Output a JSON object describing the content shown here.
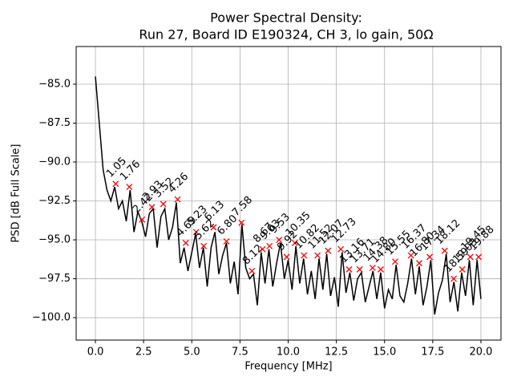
{
  "chart_data": {
    "type": "line",
    "title": [
      "Power Spectral Density:",
      "Run 27, Board ID E190324, CH 3, lo gain, 50Ω"
    ],
    "x_label": "Frequency [MHz]",
    "y_label": "PSD [dB Full Scale]",
    "x": [
      0.0,
      0.2,
      0.4,
      0.6,
      0.8,
      1.0,
      1.2,
      1.4,
      1.6,
      1.8,
      2.0,
      2.2,
      2.4,
      2.6,
      2.8,
      3.0,
      3.2,
      3.4,
      3.6,
      3.8,
      4.0,
      4.2,
      4.4,
      4.6,
      4.8,
      5.0,
      5.2,
      5.4,
      5.6,
      5.8,
      6.0,
      6.2,
      6.4,
      6.6,
      6.8,
      7.0,
      7.2,
      7.4,
      7.6,
      7.8,
      8.0,
      8.2,
      8.4,
      8.6,
      8.8,
      9.0,
      9.2,
      9.4,
      9.6,
      9.8,
      10.0,
      10.2,
      10.4,
      10.6,
      10.8,
      11.0,
      11.2,
      11.4,
      11.6,
      11.8,
      12.0,
      12.2,
      12.4,
      12.6,
      12.8,
      13.0,
      13.2,
      13.4,
      13.6,
      13.8,
      14.0,
      14.2,
      14.4,
      14.6,
      14.8,
      15.0,
      15.2,
      15.4,
      15.6,
      15.8,
      16.0,
      16.2,
      16.4,
      16.6,
      16.8,
      17.0,
      17.2,
      17.4,
      17.6,
      17.8,
      18.0,
      18.2,
      18.4,
      18.6,
      18.8,
      19.0,
      19.2,
      19.4,
      19.6,
      19.8,
      20.0
    ],
    "series": [
      {
        "color": "#000000",
        "values": [
          -84.5,
          -87.5,
          -90.5,
          -91.8,
          -92.5,
          -91.6,
          -93.0,
          -92.5,
          -93.8,
          -91.8,
          -94.5,
          -93.2,
          -93.8,
          -94.8,
          -93.3,
          -93.0,
          -95.5,
          -93.5,
          -93.0,
          -95.0,
          -94.2,
          -92.6,
          -96.5,
          -95.5,
          -97.0,
          -95.8,
          -94.6,
          -96.8,
          -95.5,
          -98.0,
          -95.5,
          -94.5,
          -97.2,
          -96.0,
          -95.2,
          -97.8,
          -96.4,
          -98.5,
          -94.0,
          -96.8,
          -97.5,
          -97.2,
          -99.2,
          -95.8,
          -97.8,
          -95.6,
          -98.0,
          -96.5,
          -95.2,
          -97.5,
          -96.3,
          -98.2,
          -95.4,
          -97.8,
          -96.2,
          -98.5,
          -97.0,
          -98.8,
          -96.2,
          -98.2,
          -95.9,
          -98.6,
          -97.4,
          -99.3,
          -95.8,
          -98.4,
          -97.1,
          -98.9,
          -97.5,
          -97.1,
          -99.0,
          -98.0,
          -97.0,
          -98.8,
          -97.1,
          -99.4,
          -98.2,
          -98.8,
          -96.6,
          -98.6,
          -99.0,
          -97.8,
          -96.2,
          -98.5,
          -96.7,
          -99.2,
          -98.0,
          -96.3,
          -99.8,
          -98.4,
          -97.6,
          -95.9,
          -99.0,
          -97.7,
          -99.6,
          -97.1,
          -98.6,
          -96.3,
          -99.2,
          -96.3,
          -98.8
        ]
      }
    ],
    "peaks": {
      "color": "#ff0000",
      "x": [
        1.05,
        1.76,
        2.42,
        2.93,
        3.52,
        4.26,
        4.69,
        5.23,
        5.62,
        6.13,
        6.8,
        7.58,
        8.12,
        8.67,
        9.03,
        9.53,
        9.92,
        10.35,
        10.82,
        11.52,
        12.07,
        12.73,
        13.16,
        13.71,
        14.38,
        14.8,
        15.55,
        16.37,
        16.8,
        17.34,
        18.12,
        18.59,
        19.03,
        19.45,
        19.88
      ],
      "values": [
        -91.4,
        -91.6,
        -93.7,
        -92.9,
        -92.7,
        -92.4,
        -95.2,
        -94.5,
        -95.4,
        -94.2,
        -95.1,
        -93.9,
        -97.0,
        -95.6,
        -95.4,
        -95.0,
        -96.1,
        -95.2,
        -96.0,
        -96.0,
        -95.7,
        -95.6,
        -96.9,
        -96.9,
        -96.8,
        -96.9,
        -96.4,
        -96.0,
        -96.5,
        -96.1,
        -95.7,
        -97.5,
        -96.9,
        -96.1,
        -96.1
      ],
      "labels": [
        "1.05",
        "1.76",
        "2.42",
        "2.93",
        "3.52",
        "4.26",
        "4.69",
        "5.23",
        "5.62",
        "6.13",
        "6.80",
        "7.58",
        "8.12",
        "8.67",
        "9.03",
        "9.53",
        "9.92",
        "10.35",
        "10.82",
        "11.52",
        "12.07",
        "12.73",
        "13.16",
        "13.71",
        "14.38",
        "14.80",
        "15.55",
        "16.37",
        "16.80",
        "17.34",
        "18.12",
        "18.59",
        "19.03",
        "19.45",
        "19.88"
      ]
    },
    "xlim": [
      -1.0,
      21.04
    ],
    "ylim": [
      -101.44,
      -82.58
    ],
    "xticks": [
      {
        "value": 0,
        "label": "0.0"
      },
      2.5,
      {
        "value": 5,
        "label": "5.0"
      },
      7.5,
      {
        "value": 10,
        "label": "10.0"
      },
      12.5,
      {
        "value": 15,
        "label": "15.0"
      },
      17.5,
      {
        "value": 20,
        "label": "20.0"
      }
    ],
    "yticks": [
      {
        "value": -100,
        "label": "−100.0"
      },
      {
        "value": -97.5,
        "label": "−97.5"
      },
      {
        "value": -95,
        "label": "−95.0"
      },
      {
        "value": -92.5,
        "label": "−92.5"
      },
      {
        "value": -90,
        "label": "−90.0"
      },
      {
        "value": -87.5,
        "label": "−87.5"
      },
      {
        "value": -85,
        "label": "−85.0"
      }
    ],
    "grid": true
  }
}
